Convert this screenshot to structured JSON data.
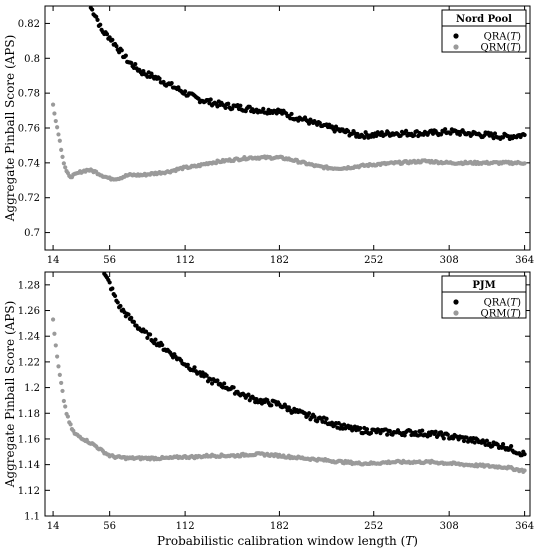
{
  "chart_data": [
    {
      "type": "scatter",
      "title": "Nord Pool",
      "ylabel": "Aggregate Pinball Score (APS)",
      "xlabel": "",
      "xlim": [
        8,
        368
      ],
      "ylim": [
        0.69,
        0.83
      ],
      "x_ticks": [
        14,
        56,
        112,
        182,
        252,
        308,
        364
      ],
      "y_ticks": [
        0.7,
        0.72,
        0.74,
        0.76,
        0.78,
        0.8,
        0.82
      ],
      "y_tick_labels": [
        "0.7",
        "0.72",
        "0.74",
        "0.76",
        "0.78",
        "0.8",
        "0.82"
      ],
      "legend_position": "top-right",
      "legend_title": "Nord Pool",
      "series": [
        {
          "name": "QRA(T)",
          "color": "#000000",
          "points": [
            [
              42,
              0.829
            ],
            [
              46,
              0.824
            ],
            [
              50,
              0.816
            ],
            [
              56,
              0.812
            ],
            [
              62,
              0.806
            ],
            [
              70,
              0.798
            ],
            [
              80,
              0.792
            ],
            [
              90,
              0.789
            ],
            [
              100,
              0.785
            ],
            [
              110,
              0.781
            ],
            [
              120,
              0.777
            ],
            [
              130,
              0.775
            ],
            [
              140,
              0.773
            ],
            [
              150,
              0.772
            ],
            [
              160,
              0.771
            ],
            [
              170,
              0.77
            ],
            [
              180,
              0.77
            ],
            [
              190,
              0.767
            ],
            [
              200,
              0.765
            ],
            [
              210,
              0.762
            ],
            [
              220,
              0.76
            ],
            [
              230,
              0.758
            ],
            [
              240,
              0.756
            ],
            [
              252,
              0.756
            ],
            [
              265,
              0.757
            ],
            [
              280,
              0.757
            ],
            [
              295,
              0.757
            ],
            [
              308,
              0.758
            ],
            [
              320,
              0.757
            ],
            [
              335,
              0.756
            ],
            [
              350,
              0.755
            ],
            [
              364,
              0.756
            ]
          ]
        },
        {
          "name": "QRM(T)",
          "color": "#9a9a9a",
          "points": [
            [
              14,
              0.774
            ],
            [
              16,
              0.764
            ],
            [
              18,
              0.757
            ],
            [
              20,
              0.748
            ],
            [
              22,
              0.74
            ],
            [
              24,
              0.735
            ],
            [
              26,
              0.732
            ],
            [
              30,
              0.733
            ],
            [
              35,
              0.735
            ],
            [
              40,
              0.736
            ],
            [
              45,
              0.735
            ],
            [
              50,
              0.733
            ],
            [
              56,
              0.731
            ],
            [
              62,
              0.731
            ],
            [
              70,
              0.733
            ],
            [
              80,
              0.733
            ],
            [
              90,
              0.734
            ],
            [
              100,
              0.735
            ],
            [
              110,
              0.737
            ],
            [
              120,
              0.738
            ],
            [
              130,
              0.74
            ],
            [
              140,
              0.741
            ],
            [
              150,
              0.742
            ],
            [
              160,
              0.743
            ],
            [
              170,
              0.743
            ],
            [
              182,
              0.743
            ],
            [
              190,
              0.742
            ],
            [
              200,
              0.74
            ],
            [
              210,
              0.738
            ],
            [
              220,
              0.737
            ],
            [
              230,
              0.737
            ],
            [
              240,
              0.738
            ],
            [
              252,
              0.739
            ],
            [
              270,
              0.74
            ],
            [
              290,
              0.741
            ],
            [
              308,
              0.74
            ],
            [
              320,
              0.74
            ],
            [
              340,
              0.74
            ],
            [
              364,
              0.74
            ]
          ]
        }
      ]
    },
    {
      "type": "scatter",
      "title": "PJM",
      "ylabel": "Aggregate Pinball Score (APS)",
      "xlabel": "Probabilistic calibration window length (T)",
      "xlim": [
        8,
        368
      ],
      "ylim": [
        1.1,
        1.29
      ],
      "x_ticks": [
        14,
        56,
        112,
        182,
        252,
        308,
        364
      ],
      "y_ticks": [
        1.1,
        1.12,
        1.14,
        1.16,
        1.18,
        1.2,
        1.22,
        1.24,
        1.26,
        1.28
      ],
      "y_tick_labels": [
        "1.1",
        "1.12",
        "1.14",
        "1.16",
        "1.18",
        "1.2",
        "1.22",
        "1.24",
        "1.26",
        "1.28"
      ],
      "legend_position": "top-right",
      "legend_title": "PJM",
      "series": [
        {
          "name": "QRA(T)",
          "color": "#000000",
          "points": [
            [
              52,
              1.288
            ],
            [
              56,
              1.281
            ],
            [
              60,
              1.27
            ],
            [
              64,
              1.262
            ],
            [
              70,
              1.255
            ],
            [
              80,
              1.244
            ],
            [
              90,
              1.236
            ],
            [
              100,
              1.228
            ],
            [
              110,
              1.22
            ],
            [
              120,
              1.213
            ],
            [
              130,
              1.206
            ],
            [
              140,
              1.202
            ],
            [
              150,
              1.197
            ],
            [
              160,
              1.192
            ],
            [
              170,
              1.189
            ],
            [
              182,
              1.187
            ],
            [
              190,
              1.183
            ],
            [
              200,
              1.179
            ],
            [
              210,
              1.176
            ],
            [
              220,
              1.173
            ],
            [
              230,
              1.169
            ],
            [
              240,
              1.167
            ],
            [
              252,
              1.166
            ],
            [
              265,
              1.165
            ],
            [
              280,
              1.165
            ],
            [
              295,
              1.164
            ],
            [
              308,
              1.162
            ],
            [
              320,
              1.16
            ],
            [
              335,
              1.157
            ],
            [
              350,
              1.154
            ],
            [
              364,
              1.148
            ]
          ]
        },
        {
          "name": "QRM(T)",
          "color": "#9a9a9a",
          "points": [
            [
              14,
              1.253
            ],
            [
              16,
              1.232
            ],
            [
              18,
              1.216
            ],
            [
              20,
              1.203
            ],
            [
              22,
              1.19
            ],
            [
              24,
              1.18
            ],
            [
              26,
              1.173
            ],
            [
              28,
              1.168
            ],
            [
              30,
              1.164
            ],
            [
              35,
              1.161
            ],
            [
              40,
              1.158
            ],
            [
              45,
              1.155
            ],
            [
              50,
              1.151
            ],
            [
              56,
              1.147
            ],
            [
              60,
              1.146
            ],
            [
              70,
              1.145
            ],
            [
              80,
              1.145
            ],
            [
              90,
              1.145
            ],
            [
              100,
              1.145
            ],
            [
              110,
              1.146
            ],
            [
              120,
              1.146
            ],
            [
              130,
              1.147
            ],
            [
              140,
              1.147
            ],
            [
              150,
              1.147
            ],
            [
              160,
              1.148
            ],
            [
              170,
              1.148
            ],
            [
              182,
              1.147
            ],
            [
              190,
              1.146
            ],
            [
              200,
              1.145
            ],
            [
              210,
              1.144
            ],
            [
              220,
              1.143
            ],
            [
              230,
              1.142
            ],
            [
              240,
              1.141
            ],
            [
              252,
              1.141
            ],
            [
              265,
              1.142
            ],
            [
              280,
              1.142
            ],
            [
              295,
              1.142
            ],
            [
              308,
              1.141
            ],
            [
              320,
              1.14
            ],
            [
              335,
              1.139
            ],
            [
              350,
              1.138
            ],
            [
              364,
              1.135
            ]
          ]
        }
      ]
    }
  ]
}
